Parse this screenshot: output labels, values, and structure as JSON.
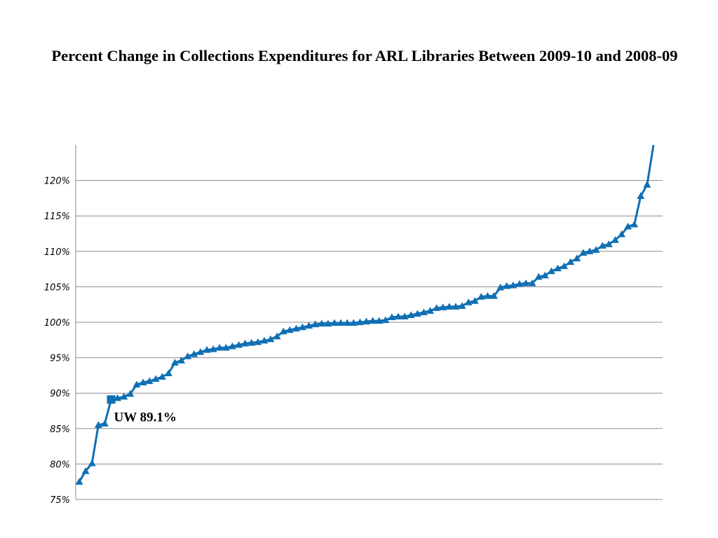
{
  "chart_data": {
    "type": "line",
    "title": "Percent Change in Collections Expenditures for ARL Libraries  Between 2009-10 and 2008-09",
    "xlabel": "",
    "ylabel": "",
    "ylim": [
      75,
      125
    ],
    "y_ticks": [
      "75%",
      "80%",
      "85%",
      "90%",
      "95%",
      "100%",
      "105%",
      "110%",
      "115%",
      "120%"
    ],
    "y_tick_values": [
      75,
      80,
      85,
      90,
      95,
      100,
      105,
      110,
      115,
      120
    ],
    "grid": true,
    "legend": "none",
    "line_color": "#0f6fb4",
    "values": [
      77.5,
      79.0,
      80.1,
      85.5,
      85.7,
      89.1,
      89.3,
      89.5,
      89.9,
      91.2,
      91.5,
      91.7,
      92.0,
      92.3,
      92.8,
      94.3,
      94.6,
      95.2,
      95.5,
      95.8,
      96.1,
      96.2,
      96.4,
      96.4,
      96.6,
      96.8,
      97.0,
      97.1,
      97.2,
      97.4,
      97.6,
      98.0,
      98.7,
      98.9,
      99.1,
      99.3,
      99.5,
      99.7,
      99.8,
      99.8,
      99.9,
      99.9,
      99.9,
      99.9,
      100.0,
      100.1,
      100.2,
      100.2,
      100.3,
      100.7,
      100.8,
      100.8,
      101.0,
      101.2,
      101.4,
      101.6,
      102.0,
      102.1,
      102.2,
      102.2,
      102.3,
      102.8,
      103.0,
      103.6,
      103.7,
      103.7,
      104.9,
      105.1,
      105.2,
      105.4,
      105.5,
      105.5,
      106.4,
      106.6,
      107.2,
      107.6,
      107.9,
      108.5,
      109.0,
      109.8,
      110.0,
      110.2,
      110.8,
      111.0,
      111.6,
      112.4,
      113.5,
      113.8,
      117.8,
      119.4,
      125.0
    ],
    "highlight": {
      "index": 5,
      "value": 89.1,
      "label": "UW 89.1%"
    }
  }
}
